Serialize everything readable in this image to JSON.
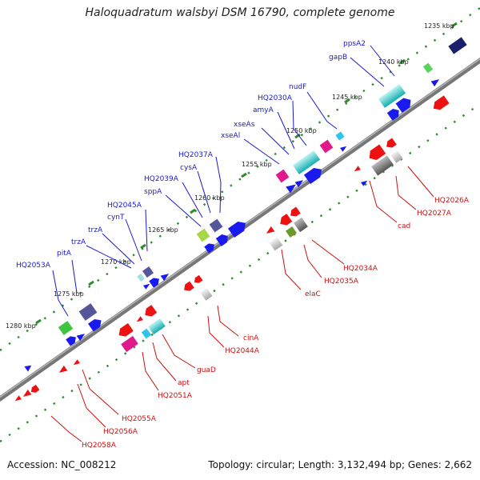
{
  "title": "Haloquadratum walsbyi DSM 16790, complete genome",
  "footer": {
    "accession": "Accession: NC_008212",
    "summary": "Topology: circular; Length: 3,132,494 bp; Genes: 2,662"
  },
  "colors": {
    "forward_label": "#1a1acc",
    "reverse_label": "#cc1111",
    "tick": "#2e8b2e",
    "backbone": "#777777"
  },
  "ticks": [
    "1235 kbp",
    "1240 kbp",
    "1245 kbp",
    "1250 kbp",
    "1255 kbp",
    "1260 kbp",
    "1265 kbp",
    "1270 kbp",
    "1275 kbp",
    "1280 kbp"
  ],
  "forward_labels": [
    "ppsA2",
    "gapB",
    "nudF",
    "HQ2030A",
    "amyA",
    "xseAs",
    "xseAl",
    "HQ2037A",
    "cysA",
    "HQ2039A",
    "sppA",
    "HQ2045A",
    "cynT",
    "trzA",
    "trzA",
    "pitA",
    "HQ2053A"
  ],
  "reverse_labels": [
    "HQ2026A",
    "HQ2027A",
    "cad",
    "HQ2034A",
    "HQ2035A",
    "elaC",
    "cinA",
    "HQ2044A",
    "guaD",
    "apt",
    "HQ2051A",
    "HQ2055A",
    "HQ2056A",
    "HQ2058A"
  ]
}
